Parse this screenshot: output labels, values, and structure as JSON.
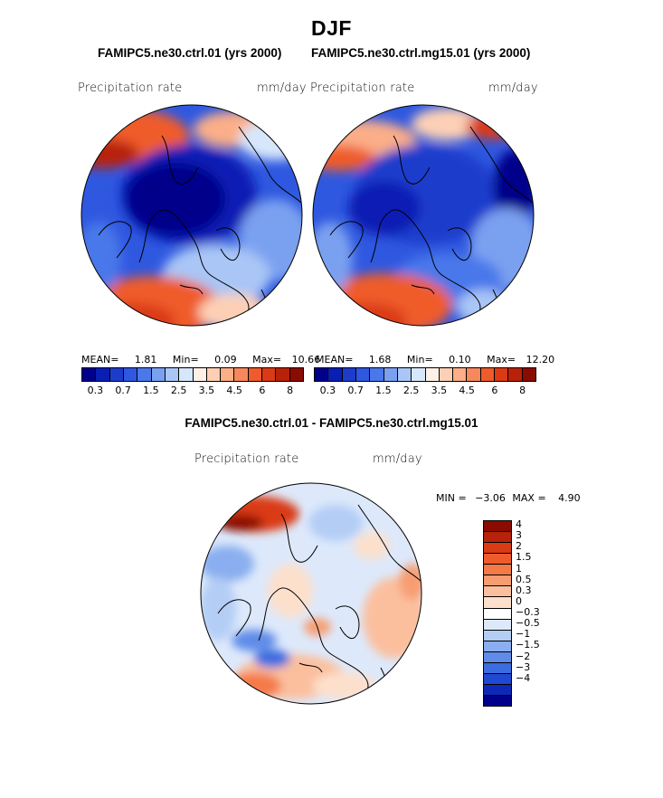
{
  "figure": {
    "title": "DJF"
  },
  "panels": [
    {
      "case_title": "FAMIPC5.ne30.ctrl.01 (yrs 2000)",
      "variable": "Precipitation rate",
      "units": "mm/day",
      "mean_label": "MEAN=",
      "mean_value": "1.81",
      "min_label": "Min=",
      "min_value": "0.09",
      "max_label": "Max=",
      "max_value": "10.66"
    },
    {
      "case_title": "FAMIPC5.ne30.ctrl.mg15.01 (yrs 2000)",
      "variable": "Precipitation rate",
      "units": "mm/day",
      "mean_label": "MEAN=",
      "mean_value": "1.68",
      "min_label": "Min=",
      "min_value": "0.10",
      "max_label": "Max=",
      "max_value": "12.20"
    }
  ],
  "precip_colorbar": {
    "colors": [
      "#00008b",
      "#0a1eb4",
      "#1e3ccc",
      "#2f58e0",
      "#4a78ea",
      "#7aa0f0",
      "#a9c6f6",
      "#d7e7fb",
      "#fff0e6",
      "#fdd0b5",
      "#fbae88",
      "#f7885c",
      "#ef5b2c",
      "#da3a14",
      "#b8220a",
      "#8a0c00"
    ],
    "tick_labels": [
      "0.3",
      "0.7",
      "1.5",
      "2.5",
      "3.5",
      "4.5",
      "6",
      "8"
    ]
  },
  "difference": {
    "title": "FAMIPC5.ne30.ctrl.01 - FAMIPC5.ne30.ctrl.mg15.01",
    "variable": "Precipitation rate",
    "units": "mm/day",
    "min_label": "MIN =",
    "min_value": "−3.06",
    "max_label": "MAX =",
    "max_value": "4.90",
    "colorbar": {
      "colors": [
        "#8a0c00",
        "#b8220a",
        "#da3a14",
        "#ef5b2c",
        "#f47a48",
        "#f79d72",
        "#fbbf9e",
        "#fde0cc",
        "#ffffff",
        "#dde9fb",
        "#b3cdf5",
        "#8aaeef",
        "#5e8ce8",
        "#3b6ce0",
        "#2048d2",
        "#1028b8",
        "#00008b"
      ],
      "labels": [
        "4",
        "3",
        "2",
        "1.5",
        "1",
        "0.5",
        "0.3",
        "0",
        "−0.3",
        "−0.5",
        "−1",
        "−1.5",
        "−2",
        "−3",
        "−4"
      ]
    }
  }
}
